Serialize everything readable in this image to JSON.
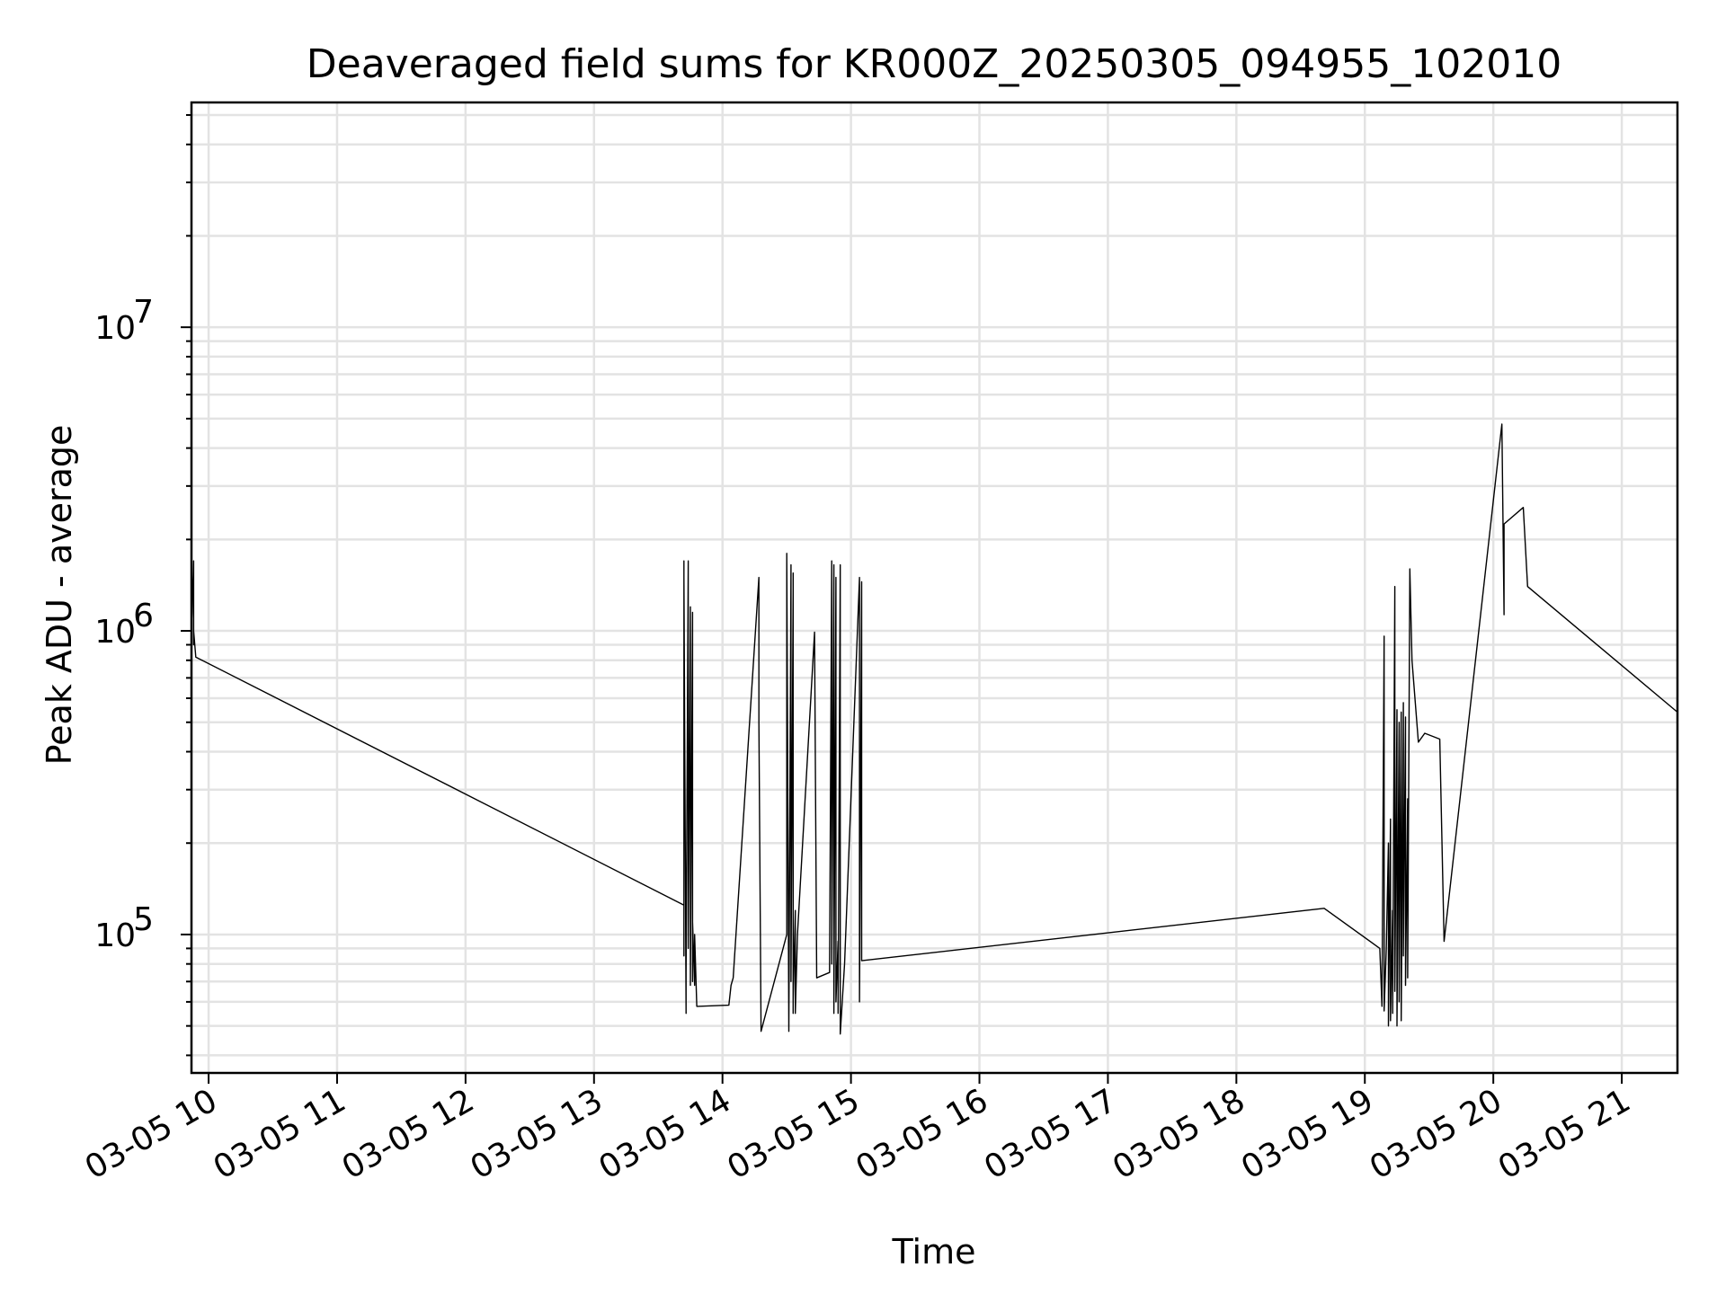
{
  "chart_data": {
    "type": "line",
    "title": "Deaveraged field sums for KR000Z_20250305_094955_102010",
    "xlabel": "Time",
    "ylabel": "Peak ADU - average",
    "yscale": "log",
    "grid": true,
    "xlim": [
      "2025-03-05T09:52",
      "2025-03-05T21:26"
    ],
    "ylim": [
      35000,
      55000000
    ],
    "x_ticks": [
      {
        "t": "2025-03-05T10:00",
        "label": "03-05 10"
      },
      {
        "t": "2025-03-05T11:00",
        "label": "03-05 11"
      },
      {
        "t": "2025-03-05T12:00",
        "label": "03-05 12"
      },
      {
        "t": "2025-03-05T13:00",
        "label": "03-05 13"
      },
      {
        "t": "2025-03-05T14:00",
        "label": "03-05 14"
      },
      {
        "t": "2025-03-05T15:00",
        "label": "03-05 15"
      },
      {
        "t": "2025-03-05T16:00",
        "label": "03-05 16"
      },
      {
        "t": "2025-03-05T17:00",
        "label": "03-05 17"
      },
      {
        "t": "2025-03-05T18:00",
        "label": "03-05 18"
      },
      {
        "t": "2025-03-05T19:00",
        "label": "03-05 19"
      },
      {
        "t": "2025-03-05T20:00",
        "label": "03-05 20"
      },
      {
        "t": "2025-03-05T21:00",
        "label": "03-05 21"
      }
    ],
    "y_major_ticks": [
      {
        "v": 100000,
        "base": "10",
        "exp": "5"
      },
      {
        "v": 1000000,
        "base": "10",
        "exp": "6"
      },
      {
        "v": 10000000,
        "base": "10",
        "exp": "7"
      }
    ],
    "series": [
      {
        "color": "#000000",
        "points": [
          [
            "2025-03-05T09:52",
            700000
          ],
          [
            "2025-03-05T09:52",
            2400000
          ],
          [
            "2025-03-05T09:52",
            350000
          ],
          [
            "2025-03-05T09:52",
            1800000
          ],
          [
            "2025-03-05T09:53",
            1100000
          ],
          [
            "2025-03-05T09:53",
            1700000
          ],
          [
            "2025-03-05T09:53",
            900000
          ],
          [
            "2025-03-05T09:53",
            1000000
          ],
          [
            "2025-03-05T09:54",
            820000
          ],
          [
            "2025-03-05T13:42",
            125000
          ],
          [
            "2025-03-05T13:42",
            1700000
          ],
          [
            "2025-03-05T13:42",
            85000
          ],
          [
            "2025-03-05T13:42",
            1500000
          ],
          [
            "2025-03-05T13:43",
            55000
          ],
          [
            "2025-03-05T13:43",
            130000
          ],
          [
            "2025-03-05T13:43",
            75000
          ],
          [
            "2025-03-05T13:44",
            1700000
          ],
          [
            "2025-03-05T13:44",
            90000
          ],
          [
            "2025-03-05T13:45",
            1200000
          ],
          [
            "2025-03-05T13:45",
            68000
          ],
          [
            "2025-03-05T13:46",
            1150000
          ],
          [
            "2025-03-05T13:46",
            70000
          ],
          [
            "2025-03-05T13:46",
            600000
          ],
          [
            "2025-03-05T13:46",
            110000
          ],
          [
            "2025-03-05T13:47",
            68000
          ],
          [
            "2025-03-05T13:47",
            100000
          ],
          [
            "2025-03-05T13:48",
            58000
          ],
          [
            "2025-03-05T14:03",
            58500
          ],
          [
            "2025-03-05T14:04",
            68000
          ],
          [
            "2025-03-05T14:05",
            72000
          ],
          [
            "2025-03-05T14:17",
            1500000
          ],
          [
            "2025-03-05T14:17",
            500000
          ],
          [
            "2025-03-05T14:18",
            48000
          ],
          [
            "2025-03-05T14:30",
            100000
          ],
          [
            "2025-03-05T14:30",
            1800000
          ],
          [
            "2025-03-05T14:31",
            48000
          ],
          [
            "2025-03-05T14:32",
            1650000
          ],
          [
            "2025-03-05T14:32",
            70000
          ],
          [
            "2025-03-05T14:33",
            1350000
          ],
          [
            "2025-03-05T14:33",
            55000
          ],
          [
            "2025-03-05T14:33",
            1550000
          ],
          [
            "2025-03-05T14:33",
            60000
          ],
          [
            "2025-03-05T14:34",
            120000
          ],
          [
            "2025-03-05T14:34",
            55000
          ],
          [
            "2025-03-05T14:35",
            100000
          ],
          [
            "2025-03-05T14:43",
            990000
          ],
          [
            "2025-03-05T14:44",
            72000
          ],
          [
            "2025-03-05T14:50",
            75000
          ],
          [
            "2025-03-05T14:51",
            1700000
          ],
          [
            "2025-03-05T14:51",
            80000
          ],
          [
            "2025-03-05T14:52",
            1650000
          ],
          [
            "2025-03-05T14:52",
            55000
          ],
          [
            "2025-03-05T14:53",
            1500000
          ],
          [
            "2025-03-05T14:53",
            60000
          ],
          [
            "2025-03-05T14:54",
            95000
          ],
          [
            "2025-03-05T14:54",
            55000
          ],
          [
            "2025-03-05T14:55",
            1650000
          ],
          [
            "2025-03-05T14:55",
            47000
          ],
          [
            "2025-03-05T14:57",
            80000
          ],
          [
            "2025-03-05T15:04",
            1500000
          ],
          [
            "2025-03-05T15:04",
            60000
          ],
          [
            "2025-03-05T15:05",
            1450000
          ],
          [
            "2025-03-05T15:05",
            82000
          ],
          [
            "2025-03-05T18:41",
            122000
          ],
          [
            "2025-03-05T19:07",
            90000
          ],
          [
            "2025-03-05T19:08",
            58000
          ],
          [
            "2025-03-05T19:09",
            960000
          ],
          [
            "2025-03-05T19:09",
            56000
          ],
          [
            "2025-03-05T19:10",
            90000
          ],
          [
            "2025-03-05T19:11",
            200000
          ],
          [
            "2025-03-05T19:11",
            50000
          ],
          [
            "2025-03-05T19:12",
            240000
          ],
          [
            "2025-03-05T19:12",
            52000
          ],
          [
            "2025-03-05T19:13",
            120000
          ],
          [
            "2025-03-05T19:13",
            55000
          ],
          [
            "2025-03-05T19:14",
            1400000
          ],
          [
            "2025-03-05T19:14",
            65000
          ],
          [
            "2025-03-05T19:15",
            550000
          ],
          [
            "2025-03-05T19:15",
            50000
          ],
          [
            "2025-03-05T19:16",
            500000
          ],
          [
            "2025-03-05T19:16",
            60000
          ],
          [
            "2025-03-05T19:17",
            540000
          ],
          [
            "2025-03-05T19:17",
            52000
          ],
          [
            "2025-03-05T19:18",
            580000
          ],
          [
            "2025-03-05T19:18",
            85000
          ],
          [
            "2025-03-05T19:19",
            520000
          ],
          [
            "2025-03-05T19:19",
            68000
          ],
          [
            "2025-03-05T19:20",
            280000
          ],
          [
            "2025-03-05T19:20",
            72000
          ],
          [
            "2025-03-05T19:21",
            1600000
          ],
          [
            "2025-03-05T19:22",
            800000
          ],
          [
            "2025-03-05T19:25",
            430000
          ],
          [
            "2025-03-05T19:28",
            460000
          ],
          [
            "2025-03-05T19:35",
            440000
          ],
          [
            "2025-03-05T19:37",
            95000
          ],
          [
            "2025-03-05T20:04",
            4800000
          ],
          [
            "2025-03-05T20:05",
            1130000
          ],
          [
            "2025-03-05T20:05",
            2250000
          ],
          [
            "2025-03-05T20:14",
            2550000
          ],
          [
            "2025-03-05T20:16",
            1400000
          ],
          [
            "2025-03-05T21:26",
            540000
          ]
        ]
      }
    ]
  }
}
